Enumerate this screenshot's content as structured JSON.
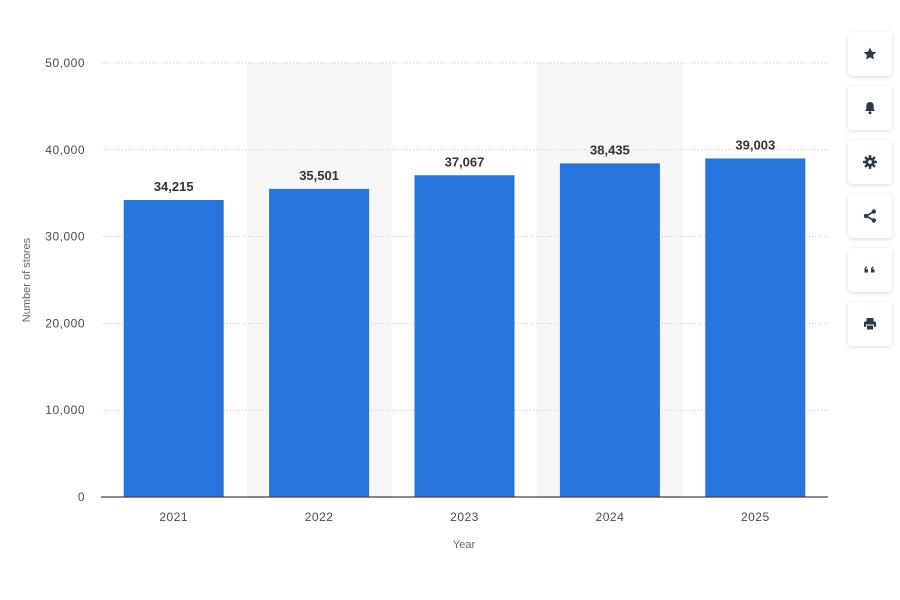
{
  "chart_data": {
    "type": "bar",
    "categories": [
      "2021",
      "2022",
      "2023",
      "2024",
      "2025"
    ],
    "values": [
      34215,
      35501,
      37067,
      38435,
      39003
    ],
    "value_labels": [
      "34,215",
      "35,501",
      "37,067",
      "38,435",
      "39,003"
    ],
    "title": "",
    "xlabel": "Year",
    "ylabel": "Number of stores",
    "ylim": [
      0,
      50000
    ],
    "yticks": [
      0,
      10000,
      20000,
      30000,
      40000,
      50000
    ],
    "ytick_labels": [
      "0",
      "10,000",
      "20,000",
      "30,000",
      "40,000",
      "50,000"
    ],
    "grid": true,
    "bar_color": "#2775dc",
    "band_color": "#f7f7f7"
  },
  "toolbar": {
    "items": [
      {
        "name": "star-icon",
        "label": "favorite"
      },
      {
        "name": "bell-icon",
        "label": "notification"
      },
      {
        "name": "gear-icon",
        "label": "settings"
      },
      {
        "name": "share-icon",
        "label": "share"
      },
      {
        "name": "quote-icon",
        "label": "cite"
      },
      {
        "name": "print-icon",
        "label": "print"
      }
    ],
    "icon_color": "#2a3a4d"
  }
}
